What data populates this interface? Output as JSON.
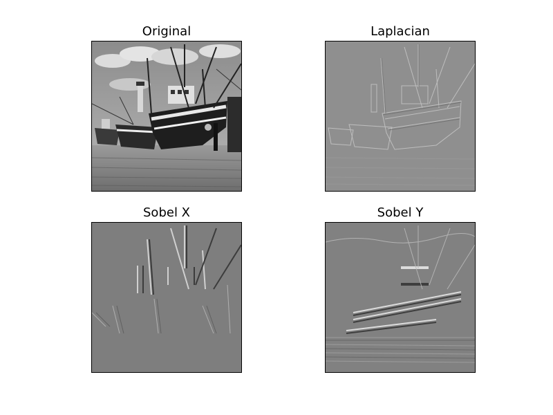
{
  "figure": {
    "panels": [
      {
        "title": "Original",
        "kind": "original"
      },
      {
        "title": "Laplacian",
        "kind": "laplacian"
      },
      {
        "title": "Sobel X",
        "kind": "sobelx"
      },
      {
        "title": "Sobel Y",
        "kind": "sobely"
      }
    ]
  }
}
